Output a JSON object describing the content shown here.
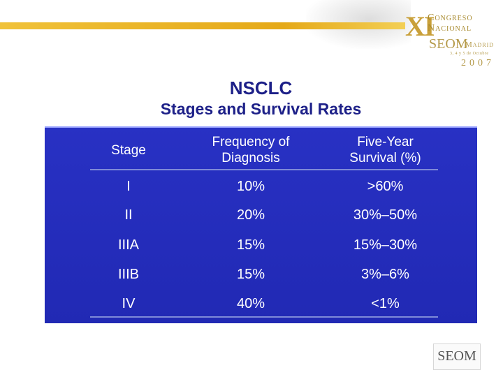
{
  "header": {
    "logo_roman": "XI",
    "logo_line1": "Congreso",
    "logo_line2": "Nacional",
    "logo_seom": "SEOM",
    "logo_city": "Madrid",
    "logo_dates": "3, 4 y 5 de Octubre",
    "logo_year": "2007"
  },
  "slide": {
    "title": "NSCLC",
    "subtitle": "Stages and Survival Rates",
    "table": {
      "headers": [
        [
          "Stage"
        ],
        [
          "Frequency of",
          "Diagnosis"
        ],
        [
          "Five-Year",
          "Survival (%)"
        ]
      ],
      "rows": [
        [
          "I",
          "10%",
          ">60%"
        ],
        [
          "II",
          "20%",
          "30%–50%"
        ],
        [
          "IIIA",
          "15%",
          "15%–30%"
        ],
        [
          "IIIB",
          "15%",
          "3%–6%"
        ],
        [
          "IV",
          "40%",
          "<1%"
        ]
      ]
    }
  },
  "footer": {
    "logo_text": "SEOM"
  },
  "colors": {
    "panel_blue": "#2a33c8",
    "title_navy": "#1d2088",
    "gold": "#e5a918"
  }
}
